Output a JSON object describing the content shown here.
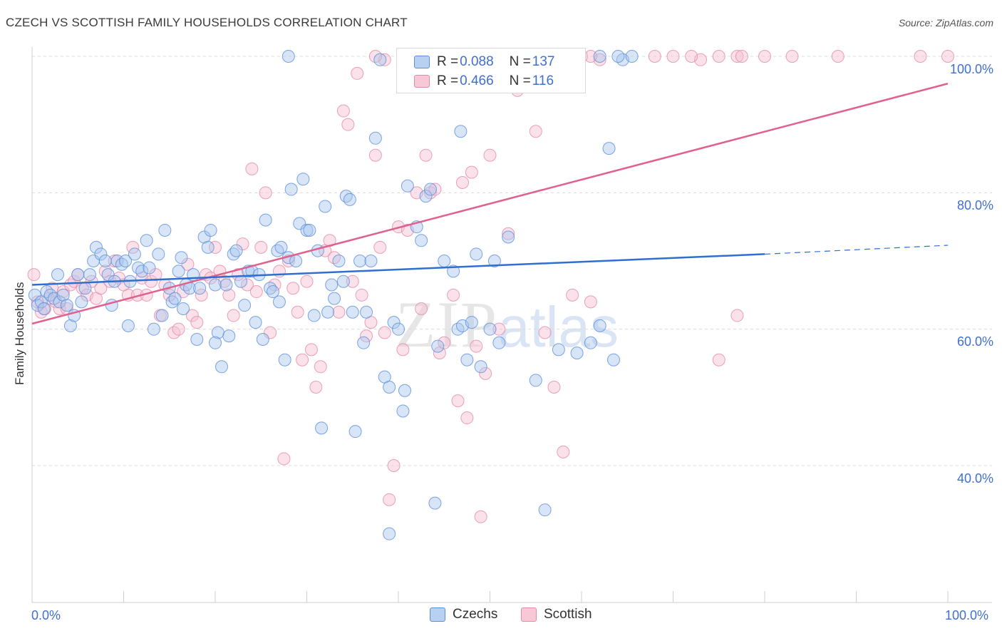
{
  "title": "CZECH VS SCOTTISH FAMILY HOUSEHOLDS CORRELATION CHART",
  "source": "Source: ZipAtlas.com",
  "watermark": {
    "zip": "ZIP",
    "atlas": "atlas"
  },
  "legend": {
    "czechs": {
      "r_label": "R = ",
      "r_value": "0.088",
      "n_label": "N = ",
      "n_value": "137"
    },
    "scottish": {
      "r_label": "R = ",
      "r_value": "0.466",
      "n_label": "N = ",
      "n_value": "116"
    }
  },
  "bottom_legend": {
    "czechs": "Czechs",
    "scottish": "Scottish"
  },
  "colors": {
    "czech_fill": "#a9c6ee",
    "czech_stroke": "#5b8fdd",
    "czech_line": "#2f6fcf",
    "scot_fill": "#f6bfd0",
    "scot_stroke": "#e58aa8",
    "scot_line": "#e0608f",
    "tick_text": "#3f6fd0",
    "grid": "#dcdcdc"
  },
  "chart_data": {
    "type": "scatter",
    "title": "CZECH VS SCOTTISH FAMILY HOUSEHOLDS CORRELATION CHART",
    "xlabel": "",
    "ylabel": "Family Households",
    "xlim": [
      0,
      100
    ],
    "ylim": [
      20,
      102
    ],
    "x_tick_labels": [
      "0.0%",
      "100.0%"
    ],
    "y_ticks": [
      40,
      60,
      80,
      100
    ],
    "y_tick_labels": [
      "40.0%",
      "60.0%",
      "80.0%",
      "100.0%"
    ],
    "grid": true,
    "legend_position": "top-center",
    "series": [
      {
        "name": "Czechs",
        "R": 0.088,
        "N": 137,
        "trend": {
          "x0": 0,
          "y0": 66.5,
          "x1": 80,
          "y1": 71.0,
          "dashed_to_x": 100,
          "dashed_to_y": 72.3
        },
        "points": [
          [
            0.3,
            65.0
          ],
          [
            0.6,
            63.5
          ],
          [
            1.0,
            64.0
          ],
          [
            1.3,
            63.0
          ],
          [
            1.6,
            65.5
          ],
          [
            2.0,
            65.0
          ],
          [
            2.4,
            64.5
          ],
          [
            2.8,
            68.0
          ],
          [
            3.0,
            64.0
          ],
          [
            3.4,
            65.0
          ],
          [
            3.8,
            63.5
          ],
          [
            4.2,
            60.5
          ],
          [
            4.6,
            62.0
          ],
          [
            5.0,
            68.0
          ],
          [
            5.4,
            64.0
          ],
          [
            5.8,
            66.0
          ],
          [
            6.3,
            68.0
          ],
          [
            6.7,
            70.0
          ],
          [
            7.0,
            72.0
          ],
          [
            7.5,
            71.0
          ],
          [
            8.0,
            70.0
          ],
          [
            8.3,
            68.0
          ],
          [
            8.7,
            63.5
          ],
          [
            9.0,
            67.0
          ],
          [
            9.3,
            70.0
          ],
          [
            9.8,
            69.5
          ],
          [
            10.2,
            70.0
          ],
          [
            10.7,
            67.0
          ],
          [
            10.5,
            60.5
          ],
          [
            11.2,
            71.0
          ],
          [
            11.6,
            69.0
          ],
          [
            12.0,
            68.5
          ],
          [
            12.5,
            73.0
          ],
          [
            12.8,
            69.0
          ],
          [
            13.3,
            60.0
          ],
          [
            13.8,
            71.0
          ],
          [
            14.2,
            62.0
          ],
          [
            14.5,
            74.5
          ],
          [
            15.0,
            66.0
          ],
          [
            15.3,
            64.0
          ],
          [
            15.6,
            64.5
          ],
          [
            16.0,
            68.5
          ],
          [
            16.3,
            70.5
          ],
          [
            16.8,
            66.5
          ],
          [
            17.2,
            66.0
          ],
          [
            17.6,
            68.0
          ],
          [
            18.0,
            58.5
          ],
          [
            18.3,
            66.0
          ],
          [
            18.8,
            73.5
          ],
          [
            19.2,
            72.0
          ],
          [
            19.5,
            74.5
          ],
          [
            20.0,
            66.5
          ],
          [
            20.3,
            59.5
          ],
          [
            20.7,
            54.5
          ],
          [
            21.2,
            66.5
          ],
          [
            21.5,
            59.0
          ],
          [
            22.0,
            71.0
          ],
          [
            22.3,
            71.5
          ],
          [
            22.8,
            67.0
          ],
          [
            23.2,
            63.5
          ],
          [
            23.6,
            68.5
          ],
          [
            24.0,
            68.5
          ],
          [
            24.4,
            61.0
          ],
          [
            24.8,
            68.0
          ],
          [
            25.2,
            58.5
          ],
          [
            25.5,
            76.0
          ],
          [
            26.0,
            66.0
          ],
          [
            26.3,
            65.5
          ],
          [
            26.8,
            71.5
          ],
          [
            27.2,
            72.0
          ],
          [
            27.6,
            55.5
          ],
          [
            28.0,
            70.5
          ],
          [
            28.3,
            80.5
          ],
          [
            28.8,
            70.0
          ],
          [
            29.2,
            75.5
          ],
          [
            29.6,
            82.0
          ],
          [
            30.0,
            74.5
          ],
          [
            30.3,
            74.5
          ],
          [
            30.8,
            62.0
          ],
          [
            31.2,
            71.5
          ],
          [
            31.6,
            45.5
          ],
          [
            32.0,
            78.0
          ],
          [
            32.3,
            62.5
          ],
          [
            32.7,
            66.5
          ],
          [
            33.0,
            64.5
          ],
          [
            33.5,
            70.0
          ],
          [
            34.0,
            67.0
          ],
          [
            34.3,
            79.5
          ],
          [
            34.7,
            79.0
          ],
          [
            35.0,
            62.5
          ],
          [
            35.3,
            45.0
          ],
          [
            35.8,
            70.0
          ],
          [
            36.2,
            58.0
          ],
          [
            36.5,
            62.5
          ],
          [
            37.0,
            70.0
          ],
          [
            37.5,
            88.0
          ],
          [
            38.0,
            99.5
          ],
          [
            38.5,
            53.0
          ],
          [
            39.0,
            51.5
          ],
          [
            39.5,
            61.0
          ],
          [
            40.0,
            60.0
          ],
          [
            40.5,
            48.0
          ],
          [
            40.7,
            51.0
          ],
          [
            41.0,
            81.0
          ],
          [
            42.0,
            75.0
          ],
          [
            42.5,
            73.0
          ],
          [
            43.0,
            79.5
          ],
          [
            43.5,
            80.5
          ],
          [
            44.0,
            34.5
          ],
          [
            44.3,
            57.5
          ],
          [
            45.0,
            70.0
          ],
          [
            46.0,
            68.5
          ],
          [
            46.5,
            60.0
          ],
          [
            46.8,
            89.0
          ],
          [
            47.5,
            55.5
          ],
          [
            48.5,
            71.0
          ],
          [
            49.0,
            54.5
          ],
          [
            50.0,
            60.0
          ],
          [
            50.5,
            70.0
          ],
          [
            51.0,
            58.0
          ],
          [
            52.0,
            73.5
          ],
          [
            55.0,
            52.5
          ],
          [
            56.0,
            33.5
          ],
          [
            57.5,
            57.0
          ],
          [
            59.5,
            56.5
          ],
          [
            61.0,
            58.0
          ],
          [
            62.0,
            60.5
          ],
          [
            63.0,
            86.5
          ],
          [
            63.5,
            55.5
          ],
          [
            64.5,
            99.5
          ],
          [
            47.0,
            60.5
          ],
          [
            48.0,
            61.0
          ],
          [
            39.0,
            30.0
          ],
          [
            20.0,
            58.0
          ],
          [
            16.5,
            63.0
          ],
          [
            27.0,
            64.0
          ]
        ]
      },
      {
        "name": "Scottish",
        "R": 0.466,
        "N": 116,
        "trend": {
          "x0": 0,
          "y0": 60.8,
          "x1": 100,
          "y1": 96.0
        },
        "points": [
          [
            0.2,
            68.0
          ],
          [
            0.6,
            64.0
          ],
          [
            1.0,
            62.5
          ],
          [
            1.4,
            63.0
          ],
          [
            1.8,
            64.5
          ],
          [
            2.2,
            66.0
          ],
          [
            2.6,
            64.0
          ],
          [
            3.0,
            63.0
          ],
          [
            3.4,
            65.5
          ],
          [
            3.8,
            63.0
          ],
          [
            4.2,
            66.5
          ],
          [
            4.6,
            67.0
          ],
          [
            5.0,
            68.0
          ],
          [
            5.5,
            66.0
          ],
          [
            6.0,
            65.0
          ],
          [
            6.5,
            67.0
          ],
          [
            7.0,
            64.5
          ],
          [
            7.5,
            66.0
          ],
          [
            8.0,
            68.5
          ],
          [
            8.5,
            67.0
          ],
          [
            9.0,
            70.0
          ],
          [
            9.5,
            67.5
          ],
          [
            10.0,
            66.5
          ],
          [
            10.5,
            65.0
          ],
          [
            11.0,
            72.0
          ],
          [
            11.5,
            65.0
          ],
          [
            12.0,
            67.5
          ],
          [
            12.5,
            65.0
          ],
          [
            13.0,
            67.0
          ],
          [
            13.5,
            68.0
          ],
          [
            14.0,
            62.0
          ],
          [
            14.5,
            66.5
          ],
          [
            15.0,
            65.0
          ],
          [
            15.5,
            59.5
          ],
          [
            16.0,
            60.0
          ],
          [
            16.5,
            65.5
          ],
          [
            17.0,
            69.5
          ],
          [
            17.5,
            62.0
          ],
          [
            18.0,
            61.0
          ],
          [
            18.5,
            65.0
          ],
          [
            19.0,
            68.0
          ],
          [
            19.5,
            67.5
          ],
          [
            20.0,
            72.0
          ],
          [
            20.5,
            68.5
          ],
          [
            21.0,
            67.0
          ],
          [
            21.5,
            65.0
          ],
          [
            22.0,
            62.0
          ],
          [
            22.5,
            68.0
          ],
          [
            23.0,
            72.5
          ],
          [
            23.5,
            66.5
          ],
          [
            24.0,
            83.5
          ],
          [
            24.5,
            65.5
          ],
          [
            25.0,
            72.0
          ],
          [
            25.5,
            80.0
          ],
          [
            26.0,
            59.5
          ],
          [
            26.5,
            66.5
          ],
          [
            27.0,
            68.5
          ],
          [
            27.5,
            41.0
          ],
          [
            28.0,
            70.0
          ],
          [
            28.5,
            66.0
          ],
          [
            29.0,
            62.5
          ],
          [
            29.5,
            55.5
          ],
          [
            30.0,
            67.0
          ],
          [
            30.5,
            57.0
          ],
          [
            31.0,
            51.5
          ],
          [
            31.5,
            54.5
          ],
          [
            32.0,
            71.5
          ],
          [
            32.5,
            73.0
          ],
          [
            33.0,
            70.5
          ],
          [
            33.5,
            62.5
          ],
          [
            34.0,
            92.0
          ],
          [
            34.5,
            90.0
          ],
          [
            35.0,
            67.0
          ],
          [
            35.5,
            97.5
          ],
          [
            36.0,
            65.0
          ],
          [
            36.5,
            59.0
          ],
          [
            37.0,
            61.0
          ],
          [
            37.5,
            85.5
          ],
          [
            38.0,
            72.0
          ],
          [
            38.5,
            59.5
          ],
          [
            39.0,
            35.0
          ],
          [
            39.5,
            40.0
          ],
          [
            40.0,
            75.0
          ],
          [
            40.5,
            57.0
          ],
          [
            41.0,
            74.5
          ],
          [
            42.0,
            80.0
          ],
          [
            42.5,
            63.0
          ],
          [
            43.0,
            85.5
          ],
          [
            43.5,
            80.0
          ],
          [
            44.0,
            80.5
          ],
          [
            44.5,
            56.5
          ],
          [
            45.0,
            58.0
          ],
          [
            46.0,
            65.0
          ],
          [
            46.5,
            49.5
          ],
          [
            47.0,
            81.5
          ],
          [
            47.5,
            47.0
          ],
          [
            48.0,
            83.0
          ],
          [
            48.5,
            57.5
          ],
          [
            49.0,
            32.5
          ],
          [
            49.5,
            53.5
          ],
          [
            50.0,
            85.5
          ],
          [
            51.0,
            60.0
          ],
          [
            52.0,
            74.0
          ],
          [
            53.0,
            95.0
          ],
          [
            55.0,
            89.0
          ],
          [
            56.0,
            59.5
          ],
          [
            57.0,
            51.5
          ],
          [
            58.0,
            42.0
          ],
          [
            59.0,
            65.0
          ],
          [
            61.0,
            64.0
          ],
          [
            75.0,
            55.5
          ],
          [
            77.0,
            62.0
          ],
          [
            62.0,
            99.5
          ],
          [
            73.0,
            99.5
          ],
          [
            38.5,
            99.5
          ],
          [
            52.0,
            99.5
          ]
        ]
      }
    ],
    "top_points_100": {
      "czechs_x": [
        28.0,
        43.0,
        44.0,
        44.5,
        50.5,
        51.0,
        53.5,
        62.0,
        64.0,
        65.5
      ],
      "scottish_x": [
        37.5,
        55.0,
        56.0,
        57.5,
        59.0,
        60.0,
        61.0,
        68.0,
        70.0,
        72.0,
        75.0,
        77.0,
        77.5,
        80.0,
        83.0,
        88.0,
        97.0,
        100.0
      ]
    }
  }
}
